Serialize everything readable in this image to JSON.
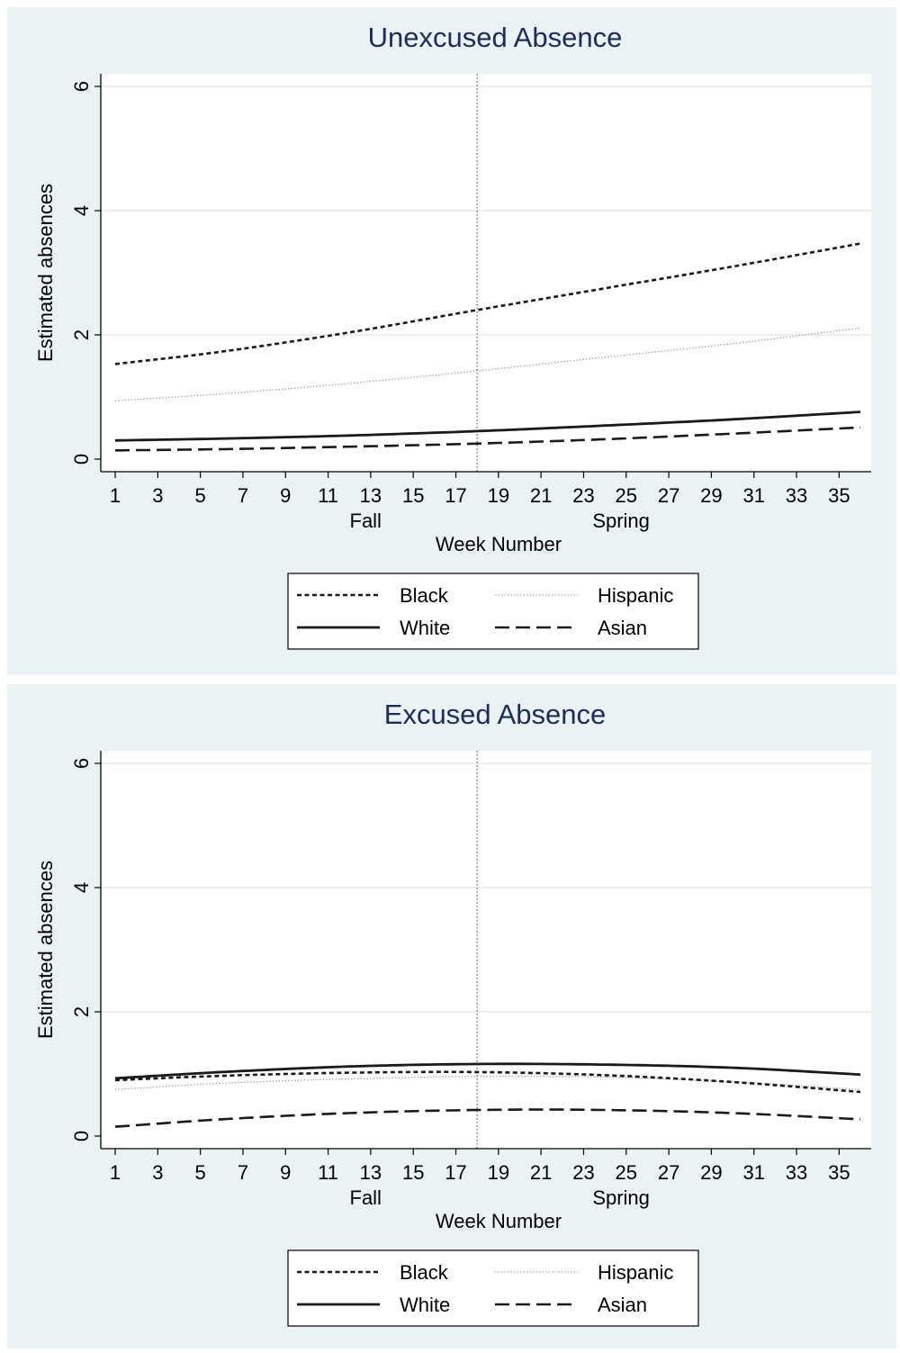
{
  "chart_data": [
    {
      "type": "line",
      "title": "Unexcused Absence",
      "xlabel": "Week Number",
      "ylabel": "Estimated absences",
      "xlim": [
        1,
        36
      ],
      "ylim": [
        0,
        6
      ],
      "xticks": [
        1,
        3,
        5,
        7,
        9,
        11,
        13,
        15,
        17,
        19,
        21,
        23,
        25,
        27,
        29,
        31,
        33,
        35
      ],
      "yticks": [
        0,
        2,
        4,
        6
      ],
      "grid": "horizontal",
      "reference_line_x": 18,
      "period_labels": [
        {
          "label": "Fall",
          "x": 12
        },
        {
          "label": "Spring",
          "x": 24
        }
      ],
      "legend_position": "bottom",
      "x": [
        1,
        6,
        12,
        18,
        24,
        30,
        36
      ],
      "series": [
        {
          "name": "Black",
          "style": "short-dash",
          "values": [
            1.53,
            1.73,
            2.04,
            2.4,
            2.75,
            3.1,
            3.47
          ]
        },
        {
          "name": "Hispanic",
          "style": "dotted",
          "values": [
            0.94,
            1.05,
            1.22,
            1.42,
            1.64,
            1.86,
            2.11
          ]
        },
        {
          "name": "White",
          "style": "solid",
          "values": [
            0.3,
            0.33,
            0.38,
            0.45,
            0.54,
            0.64,
            0.76
          ]
        },
        {
          "name": "Asian",
          "style": "long-dash",
          "values": [
            0.14,
            0.16,
            0.2,
            0.25,
            0.32,
            0.41,
            0.51
          ]
        }
      ]
    },
    {
      "type": "line",
      "title": "Excused Absence",
      "xlabel": "Week Number",
      "ylabel": "Estimated absences",
      "xlim": [
        1,
        36
      ],
      "ylim": [
        0,
        6
      ],
      "xticks": [
        1,
        3,
        5,
        7,
        9,
        11,
        13,
        15,
        17,
        19,
        21,
        23,
        25,
        27,
        29,
        31,
        33,
        35
      ],
      "yticks": [
        0,
        2,
        4,
        6
      ],
      "grid": "horizontal",
      "reference_line_x": 18,
      "period_labels": [
        {
          "label": "Fall",
          "x": 12
        },
        {
          "label": "Spring",
          "x": 24
        }
      ],
      "legend_position": "bottom",
      "x": [
        1,
        6,
        12,
        18,
        24,
        30,
        36
      ],
      "series": [
        {
          "name": "Black",
          "style": "short-dash",
          "values": [
            0.9,
            0.97,
            1.02,
            1.03,
            0.98,
            0.87,
            0.71
          ]
        },
        {
          "name": "Hispanic",
          "style": "dotted",
          "values": [
            0.75,
            0.85,
            0.92,
            0.96,
            0.95,
            0.87,
            0.75
          ]
        },
        {
          "name": "White",
          "style": "solid",
          "values": [
            0.93,
            1.03,
            1.12,
            1.16,
            1.15,
            1.1,
            0.99
          ]
        },
        {
          "name": "Asian",
          "style": "long-dash",
          "values": [
            0.15,
            0.27,
            0.37,
            0.42,
            0.42,
            0.37,
            0.27
          ]
        }
      ]
    }
  ]
}
